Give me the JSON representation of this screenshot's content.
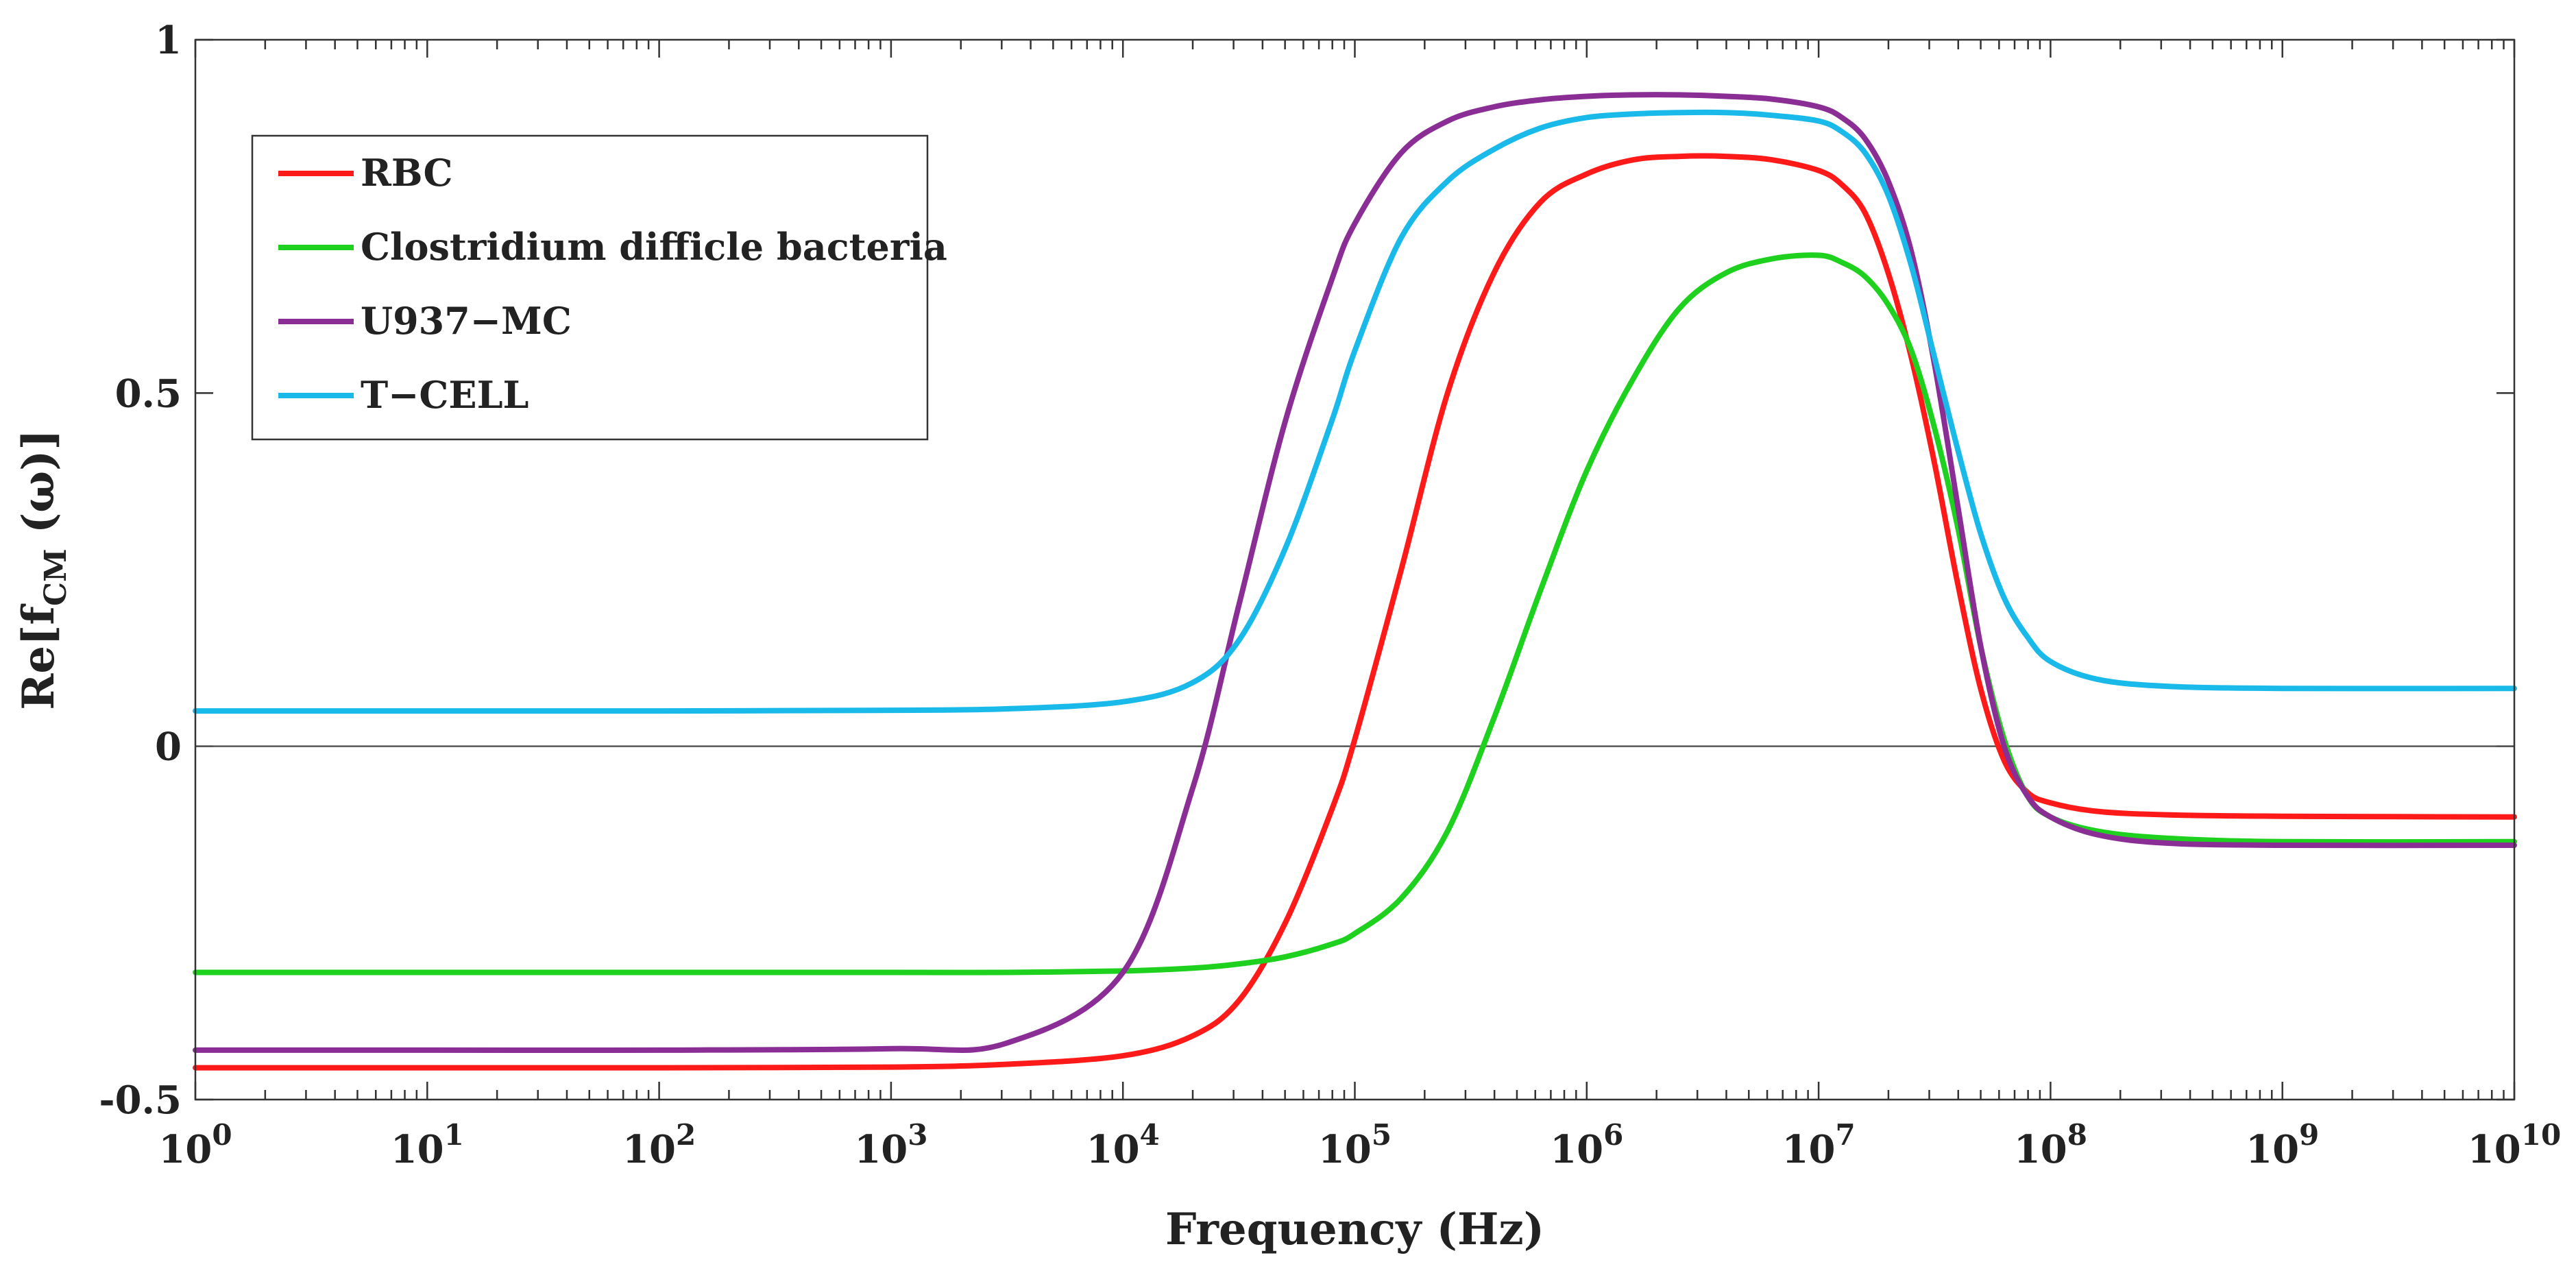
{
  "chart_data": {
    "type": "line",
    "title": "",
    "xlabel": "Frequency (Hz)",
    "ylabel": "Re[f",
    "ylabel_sub": "CM",
    "ylabel_tail": " (ω)]",
    "xscale": "log",
    "xlim_log10": [
      0,
      10
    ],
    "ylim": [
      -0.5,
      1
    ],
    "x_ticks": [
      {
        "base": "10",
        "exp": "0"
      },
      {
        "base": "10",
        "exp": "1"
      },
      {
        "base": "10",
        "exp": "2"
      },
      {
        "base": "10",
        "exp": "3"
      },
      {
        "base": "10",
        "exp": "4"
      },
      {
        "base": "10",
        "exp": "5"
      },
      {
        "base": "10",
        "exp": "6"
      },
      {
        "base": "10",
        "exp": "7"
      },
      {
        "base": "10",
        "exp": "8"
      },
      {
        "base": "10",
        "exp": "9"
      },
      {
        "base": "10",
        "exp": "10"
      }
    ],
    "y_ticks": [
      {
        "value": -0.5,
        "label": "-0.5"
      },
      {
        "value": 0,
        "label": "0"
      },
      {
        "value": 0.5,
        "label": "0.5"
      },
      {
        "value": 1,
        "label": "1"
      }
    ],
    "zero_line": true,
    "legend_position": "top-left",
    "x_log10": [
      0,
      1,
      2,
      3,
      3.5,
      4,
      4.3,
      4.5,
      4.7,
      4.9,
      5,
      5.2,
      5.4,
      5.6,
      5.8,
      6,
      6.2,
      6.4,
      6.6,
      6.8,
      7,
      7.1,
      7.2,
      7.3,
      7.4,
      7.5,
      7.6,
      7.7,
      7.8,
      7.9,
      8,
      8.2,
      8.5,
      9,
      10
    ],
    "series": [
      {
        "name": "RBC",
        "color": "#ff1a1a",
        "values": [
          -0.455,
          -0.455,
          -0.455,
          -0.454,
          -0.45,
          -0.438,
          -0.41,
          -0.36,
          -0.25,
          -0.09,
          0.01,
          0.25,
          0.5,
          0.67,
          0.77,
          0.81,
          0.83,
          0.835,
          0.835,
          0.83,
          0.815,
          0.795,
          0.755,
          0.67,
          0.55,
          0.4,
          0.23,
          0.08,
          -0.02,
          -0.065,
          -0.08,
          -0.092,
          -0.097,
          -0.099,
          -0.1
        ]
      },
      {
        "name": "Clostridium difficle bacteria",
        "color": "#1fd11f",
        "values": [
          -0.32,
          -0.32,
          -0.32,
          -0.32,
          -0.32,
          -0.318,
          -0.314,
          -0.308,
          -0.298,
          -0.28,
          -0.265,
          -0.215,
          -0.12,
          0.04,
          0.22,
          0.39,
          0.52,
          0.62,
          0.67,
          0.69,
          0.695,
          0.685,
          0.665,
          0.625,
          0.56,
          0.45,
          0.31,
          0.14,
          0.01,
          -0.07,
          -0.1,
          -0.12,
          -0.13,
          -0.135,
          -0.135
        ]
      },
      {
        "name": "U937−MC",
        "color": "#8a2e96",
        "values": [
          -0.43,
          -0.43,
          -0.43,
          -0.428,
          -0.42,
          -0.32,
          -0.06,
          0.2,
          0.46,
          0.66,
          0.74,
          0.84,
          0.885,
          0.905,
          0.915,
          0.92,
          0.922,
          0.922,
          0.92,
          0.916,
          0.905,
          0.89,
          0.86,
          0.8,
          0.7,
          0.54,
          0.34,
          0.14,
          0,
          -0.07,
          -0.1,
          -0.125,
          -0.137,
          -0.14,
          -0.14
        ]
      },
      {
        "name": "T−CELL",
        "color": "#19b9ea",
        "values": [
          0.05,
          0.05,
          0.05,
          0.051,
          0.053,
          0.063,
          0.09,
          0.15,
          0.28,
          0.46,
          0.56,
          0.72,
          0.8,
          0.845,
          0.875,
          0.89,
          0.895,
          0.897,
          0.897,
          0.893,
          0.885,
          0.87,
          0.84,
          0.78,
          0.68,
          0.55,
          0.42,
          0.3,
          0.21,
          0.155,
          0.12,
          0.095,
          0.085,
          0.082,
          0.082
        ]
      }
    ]
  }
}
